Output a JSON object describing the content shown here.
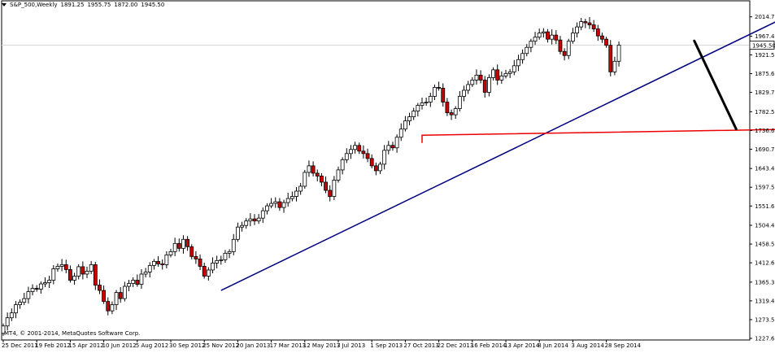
{
  "header": {
    "symbol": "S&P_500,Weekly",
    "open": "1891.25",
    "high": "1955.75",
    "low": "1872.00",
    "close": "1945.50"
  },
  "copyright": "MT4, © 2001-2014, MetaQuotes Software Corp.",
  "colors": {
    "bull": "#ffffff",
    "bear": "#cc0000",
    "wick": "#000000",
    "trendline": "#000080",
    "support": "#ee0000",
    "projection": "#000000",
    "grid": "#c8c8c8"
  },
  "chart_data": {
    "type": "candlestick",
    "timeframe": "Weekly",
    "ylim": [
      1227.65,
      2040
    ],
    "y_ticks": [
      "2014.70",
      "1967.45",
      "1921.55",
      "1875.65",
      "1829.75",
      "1782.50",
      "1736.60",
      "1690.70",
      "1643.45",
      "1597.55",
      "1551.65",
      "1504.40",
      "1458.50",
      "1412.60",
      "1365.35",
      "1319.45",
      "1273.55",
      "1227.65"
    ],
    "y_tick_values": [
      2014.7,
      1967.45,
      1921.55,
      1875.65,
      1829.75,
      1782.5,
      1736.6,
      1690.7,
      1643.45,
      1597.55,
      1551.65,
      1504.4,
      1458.5,
      1412.6,
      1365.35,
      1319.45,
      1273.55,
      1227.65
    ],
    "x_ticks": [
      "25 Dec 2011",
      "19 Feb 2012",
      "15 Apr 2012",
      "10 Jun 2012",
      "5 Aug 2012",
      "30 Sep 2012",
      "25 Nov 2012",
      "20 Jan 2013",
      "17 Mar 2013",
      "12 May 2013",
      "7 Jul 2013",
      "1 Sep 2013",
      "27 Oct 2013",
      "22 Dec 2013",
      "16 Feb 2014",
      "13 Apr 2014",
      "8 Jun 2014",
      "3 Aug 2014",
      "28 Sep 2014"
    ],
    "x_tick_index": [
      0,
      8,
      16,
      24,
      32,
      40,
      48,
      56,
      64,
      72,
      80,
      88,
      96,
      104,
      112,
      120,
      128,
      136,
      144
    ],
    "current_price": "1945.50",
    "weekly_closes": [
      1258,
      1278,
      1290,
      1310,
      1316,
      1325,
      1342,
      1350,
      1348,
      1361,
      1364,
      1370,
      1398,
      1404,
      1408,
      1396,
      1370,
      1380,
      1403,
      1385,
      1392,
      1408,
      1358,
      1345,
      1318,
      1295,
      1310,
      1340,
      1325,
      1355,
      1362,
      1370,
      1360,
      1385,
      1390,
      1406,
      1416,
      1410,
      1408,
      1432,
      1440,
      1460,
      1448,
      1470,
      1452,
      1428,
      1422,
      1404,
      1380,
      1395,
      1412,
      1418,
      1420,
      1436,
      1440,
      1470,
      1500,
      1504,
      1515,
      1520,
      1515,
      1522,
      1540,
      1552,
      1558,
      1562,
      1548,
      1560,
      1570,
      1575,
      1588,
      1600,
      1634,
      1650,
      1632,
      1625,
      1610,
      1590,
      1575,
      1615,
      1640,
      1665,
      1680,
      1690,
      1700,
      1686,
      1680,
      1668,
      1650,
      1638,
      1654,
      1688,
      1700,
      1694,
      1720,
      1740,
      1760,
      1770,
      1784,
      1798,
      1804,
      1806,
      1820,
      1842,
      1840,
      1806,
      1780,
      1775,
      1790,
      1820,
      1835,
      1849,
      1860,
      1872,
      1860,
      1830,
      1866,
      1885,
      1860,
      1870,
      1876,
      1880,
      1895,
      1910,
      1925,
      1940,
      1955,
      1965,
      1975,
      1978,
      1960,
      1970,
      1958,
      1930,
      1920,
      1955,
      1975,
      1990,
      2003,
      2000,
      1995,
      1985,
      1968,
      1960,
      1945,
      1880,
      1906,
      1945.5
    ],
    "trendline": {
      "from": {
        "week": 52,
        "price": 1345
      },
      "to": {
        "week": 192,
        "price": 2040
      }
    },
    "support_line": {
      "from": {
        "week": 102,
        "price": 1725
      },
      "to": {
        "week": 192,
        "price": 1740
      },
      "start_step": {
        "week": 100,
        "price": 1706
      }
    },
    "projection": {
      "from": {
        "week": 165,
        "price": 1956
      },
      "to": {
        "week": 175,
        "price": 1740
      }
    }
  }
}
